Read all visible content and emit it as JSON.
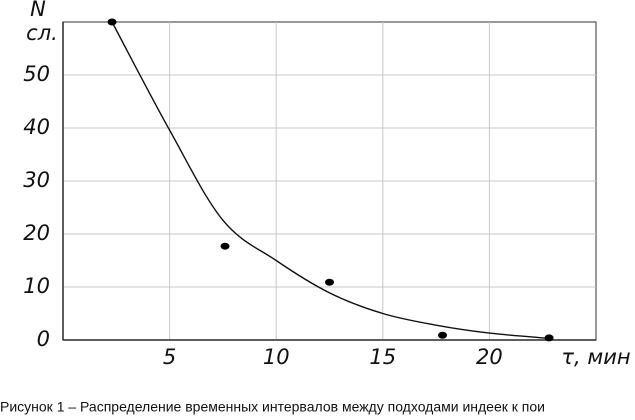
{
  "chart_data": {
    "type": "scatter",
    "y_label": "N",
    "y_unit": "сл.",
    "x_label": "τ, мин",
    "caption": "Рисунок 1 – Распределение временных интервалов между подходами индеек к пои",
    "x": [
      2.3,
      7.6,
      12.5,
      17.8,
      22.8
    ],
    "values": [
      60,
      17.7,
      10.9,
      0.9,
      0.4
    ],
    "color": "#000000",
    "curve_x": [
      2.3,
      5,
      7.5,
      10,
      12.5,
      15,
      17.5,
      20,
      22.8
    ],
    "curve_values": [
      60,
      39.6,
      22.6,
      15,
      8.9,
      5,
      2.8,
      1.3,
      0.3
    ],
    "xlim": [
      0,
      25
    ],
    "ylim": [
      0,
      60
    ],
    "xticks": [
      5,
      10,
      15,
      20
    ],
    "yticks": [
      0,
      10,
      20,
      30,
      40,
      50
    ],
    "grid": true
  }
}
